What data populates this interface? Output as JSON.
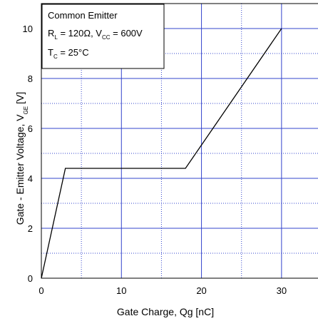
{
  "chart_data": {
    "type": "line",
    "xlabel": "Gate Charge, Qg [nC]",
    "ylabel": {
      "main": "Gate - Emitter Voltage, V",
      "subscript": "GE",
      "unit": "[V]"
    },
    "xlim": [
      0,
      35
    ],
    "ylim": [
      0,
      11
    ],
    "x_ticks": [
      0,
      10,
      20,
      30
    ],
    "y_ticks": [
      0,
      2,
      4,
      6,
      8,
      10
    ],
    "grid": true,
    "grid_style": "dotted minor every 5 nC / 1 V, solid major every 10 nC / 2 V",
    "grid_color": "#3344cc",
    "line_color": "#000000",
    "series": [
      {
        "x": [
          0,
          3,
          18,
          30
        ],
        "y": [
          0,
          4.4,
          4.4,
          10
        ]
      }
    ],
    "annotation": {
      "line1": "Common Emitter",
      "line2": {
        "rl_main": "R",
        "rl_sub": "L",
        "rl_rest": " = 120Ω, V",
        "vcc_sub": "CC",
        "vcc_rest": " = 600V"
      },
      "line3": {
        "tc_main": "T",
        "tc_sub": "C",
        "tc_rest": " = 25°C"
      }
    }
  }
}
